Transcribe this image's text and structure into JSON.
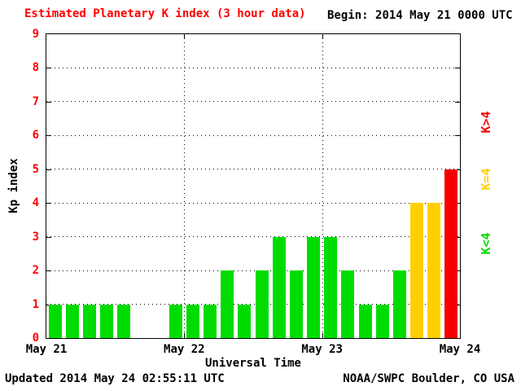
{
  "colors": {
    "title_text": "#ff0000",
    "ytick_text": "#ff0000",
    "body_text": "#000000"
  },
  "header": {
    "title": "Estimated Planetary K index (3 hour data)",
    "begin_label": "Begin:",
    "begin_value": "2014 May 21 0000 UTC"
  },
  "footer": {
    "updated": "Updated 2014 May 24 02:55:11 UTC",
    "source": "NOAA/SWPC Boulder, CO USA"
  },
  "chart_data": {
    "type": "bar",
    "title": "Estimated Planetary K index (3 hour data)",
    "xlabel": "Universal Time",
    "ylabel": "Kp index",
    "ylim": [
      0,
      9
    ],
    "yticks": [
      0,
      1,
      2,
      3,
      4,
      5,
      6,
      7,
      8,
      9
    ],
    "xticks": [
      "May 21",
      "May 22",
      "May 23",
      "May 24"
    ],
    "hours_per_bar": 3,
    "values": [
      1,
      1,
      1,
      1,
      1,
      0,
      0,
      1,
      1,
      1,
      2,
      1,
      2,
      3,
      2,
      3,
      3,
      2,
      1,
      1,
      2,
      4,
      4,
      5
    ],
    "bar_colors": {
      "k_lt_4": "#00dc00",
      "k_eq_4": "#ffd000",
      "k_gt_4": "#f40000"
    },
    "legend": [
      {
        "label": "K>4",
        "color": "#f40000"
      },
      {
        "label": "K=4",
        "color": "#ffd000"
      },
      {
        "label": "K<4",
        "color": "#00dc00"
      }
    ],
    "grid": "dotted horizontal line at each Kp integer; dotted vertical line at each day boundary",
    "legend_position": "right, rotated vertical"
  }
}
